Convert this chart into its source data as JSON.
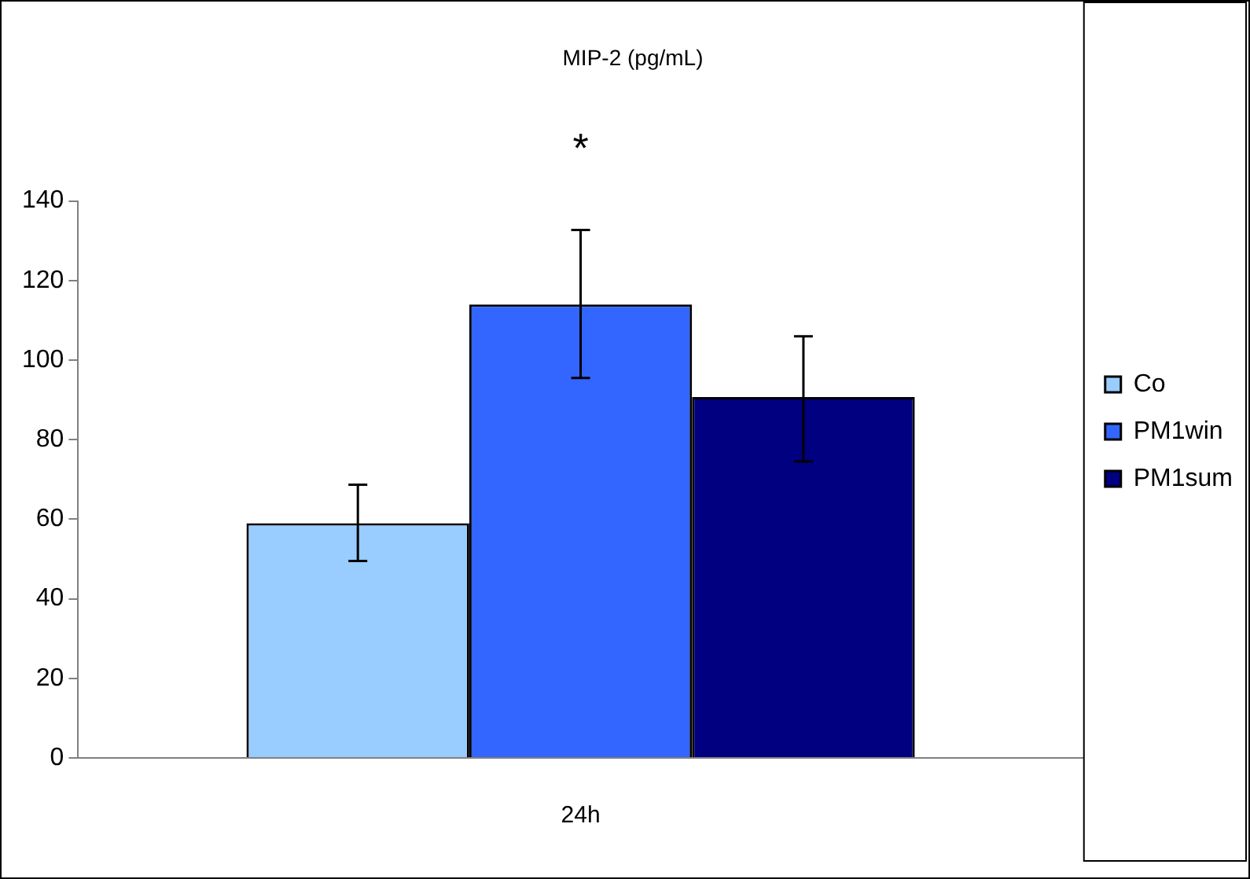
{
  "chart_data": {
    "type": "bar",
    "title": "MIP-2 (pg/mL)",
    "categories": [
      "24h"
    ],
    "series": [
      {
        "name": "Co",
        "color": "#99ccff",
        "values": [
          59
        ],
        "errors": [
          [
            49.5,
            68.7
          ]
        ]
      },
      {
        "name": "PM1win",
        "color": "#3366ff",
        "values": [
          114
        ],
        "errors": [
          [
            95.5,
            132.7
          ]
        ]
      },
      {
        "name": "PM1sum",
        "color": "#000080",
        "values": [
          90.7
        ],
        "errors": [
          [
            74.5,
            106
          ]
        ]
      }
    ],
    "ylim": [
      0,
      140
    ],
    "yticks": [
      0,
      20,
      40,
      60,
      80,
      100,
      120,
      140
    ],
    "grid": false,
    "legend": "right",
    "annotations": [
      "*"
    ]
  }
}
